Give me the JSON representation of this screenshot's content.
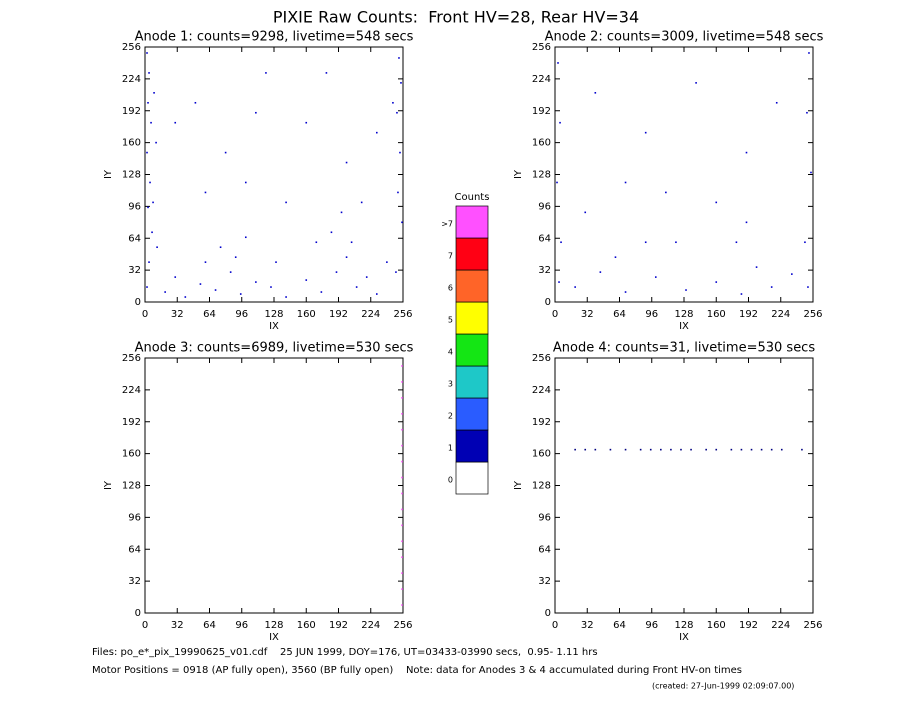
{
  "title": "PIXIE Raw Counts:  Front HV=28, Rear HV=34",
  "chart_data": [
    {
      "type": "scatter",
      "title": "Anode 1: counts=9298, livetime=548 secs",
      "x_label": "IX",
      "y_label": "IY",
      "xlim": [
        0,
        256
      ],
      "ylim": [
        0,
        256
      ],
      "xticks": [
        0,
        32,
        64,
        96,
        128,
        160,
        192,
        224,
        256
      ],
      "yticks": [
        0,
        32,
        64,
        96,
        128,
        160,
        192,
        224,
        256
      ],
      "series": [
        {
          "color": "#0000cc",
          "x": [
            2,
            4,
            3,
            6,
            2,
            5,
            3,
            7,
            4,
            2,
            9,
            11,
            8,
            12,
            252,
            254,
            250,
            253,
            251,
            255,
            249,
            246,
            20,
            30,
            40,
            55,
            70,
            85,
            95,
            110,
            125,
            140,
            160,
            175,
            190,
            200,
            205,
            210,
            220,
            230,
            240,
            185,
            195,
            215,
            60,
            75,
            90,
            100,
            50,
            80,
            120,
            160,
            200,
            140,
            100,
            60,
            170,
            130,
            230,
            30,
            110,
            180
          ],
          "y": [
            250,
            230,
            200,
            180,
            150,
            120,
            95,
            70,
            40,
            15,
            210,
            160,
            100,
            55,
            245,
            220,
            190,
            150,
            110,
            80,
            30,
            200,
            10,
            25,
            5,
            18,
            12,
            30,
            8,
            20,
            15,
            5,
            22,
            10,
            30,
            45,
            60,
            15,
            25,
            8,
            40,
            70,
            90,
            100,
            40,
            55,
            45,
            65,
            200,
            150,
            230,
            180,
            140,
            100,
            120,
            110,
            60,
            40,
            170,
            180,
            190,
            230
          ]
        }
      ]
    },
    {
      "type": "scatter",
      "title": "Anode 2: counts=3009, livetime=548 secs",
      "x_label": "IX",
      "y_label": "IY",
      "xlim": [
        0,
        256
      ],
      "ylim": [
        0,
        256
      ],
      "xticks": [
        0,
        32,
        64,
        96,
        128,
        160,
        192,
        224,
        256
      ],
      "yticks": [
        0,
        32,
        64,
        96,
        128,
        160,
        192,
        224,
        256
      ],
      "series": [
        {
          "color": "#0000cc",
          "x": [
            3,
            5,
            2,
            6,
            4,
            252,
            250,
            254,
            248,
            251,
            20,
            45,
            70,
            100,
            130,
            160,
            185,
            200,
            215,
            235,
            180,
            190,
            60,
            90,
            40,
            90,
            140,
            190,
            110,
            160,
            220,
            70,
            30,
            120
          ],
          "y": [
            240,
            180,
            120,
            60,
            20,
            250,
            190,
            130,
            60,
            15,
            15,
            30,
            10,
            25,
            12,
            20,
            8,
            35,
            15,
            28,
            60,
            80,
            45,
            60,
            210,
            170,
            220,
            150,
            110,
            100,
            200,
            120,
            90,
            60
          ]
        }
      ]
    },
    {
      "type": "scatter",
      "title": "Anode 3: counts=6989, livetime=530 secs",
      "x_label": "IX",
      "y_label": "IY",
      "xlim": [
        0,
        256
      ],
      "ylim": [
        0,
        256
      ],
      "xticks": [
        0,
        32,
        64,
        96,
        128,
        160,
        192,
        224,
        256
      ],
      "yticks": [
        0,
        32,
        64,
        96,
        128,
        160,
        192,
        224,
        256
      ],
      "series": [
        {
          "color": "#ff60ff",
          "x": [
            255,
            255,
            255,
            255,
            255,
            255,
            255,
            255,
            255,
            255,
            255,
            255,
            255,
            255,
            255,
            255
          ],
          "y": [
            8,
            24,
            40,
            56,
            72,
            88,
            104,
            120,
            136,
            152,
            168,
            184,
            200,
            216,
            232,
            248
          ]
        }
      ]
    },
    {
      "type": "scatter",
      "title": "Anode 4: counts=31, livetime=530 secs",
      "x_label": "IX",
      "y_label": "IY",
      "xlim": [
        0,
        256
      ],
      "ylim": [
        0,
        256
      ],
      "xticks": [
        0,
        32,
        64,
        96,
        128,
        160,
        192,
        224,
        256
      ],
      "yticks": [
        0,
        32,
        64,
        96,
        128,
        160,
        192,
        224,
        256
      ],
      "series": [
        {
          "color": "#000080",
          "x": [
            20,
            30,
            40,
            55,
            70,
            85,
            95,
            105,
            115,
            125,
            135,
            150,
            160,
            175,
            185,
            195,
            205,
            215,
            225,
            245
          ],
          "y": [
            164,
            164,
            164,
            164,
            164,
            164,
            164,
            164,
            164,
            164,
            164,
            164,
            164,
            164,
            164,
            164,
            164,
            164,
            164,
            164
          ]
        }
      ]
    }
  ],
  "colorbar": {
    "title": "Counts",
    "labels": [
      "0",
      "1",
      "2",
      "3",
      "4",
      "5",
      "6",
      "7",
      ">7"
    ],
    "colors": [
      "#ffffff",
      "#0000b4",
      "#2a5cff",
      "#1ec8c8",
      "#14e614",
      "#ffff00",
      "#ff6428",
      "#ff0014",
      "#ff50ff"
    ]
  },
  "footer": [
    "Files: po_e*_pix_19990625_v01.cdf    25 JUN 1999, DOY=176, UT=03433-03990 secs,  0.95- 1.11 hrs",
    "Motor Positions = 0918 (AP fully open), 3560 (BP fully open)    Note: data for Anodes 3 & 4 accumulated during Front HV-on times",
    "(created: 27-Jun-1999 02:09:07.00)"
  ]
}
